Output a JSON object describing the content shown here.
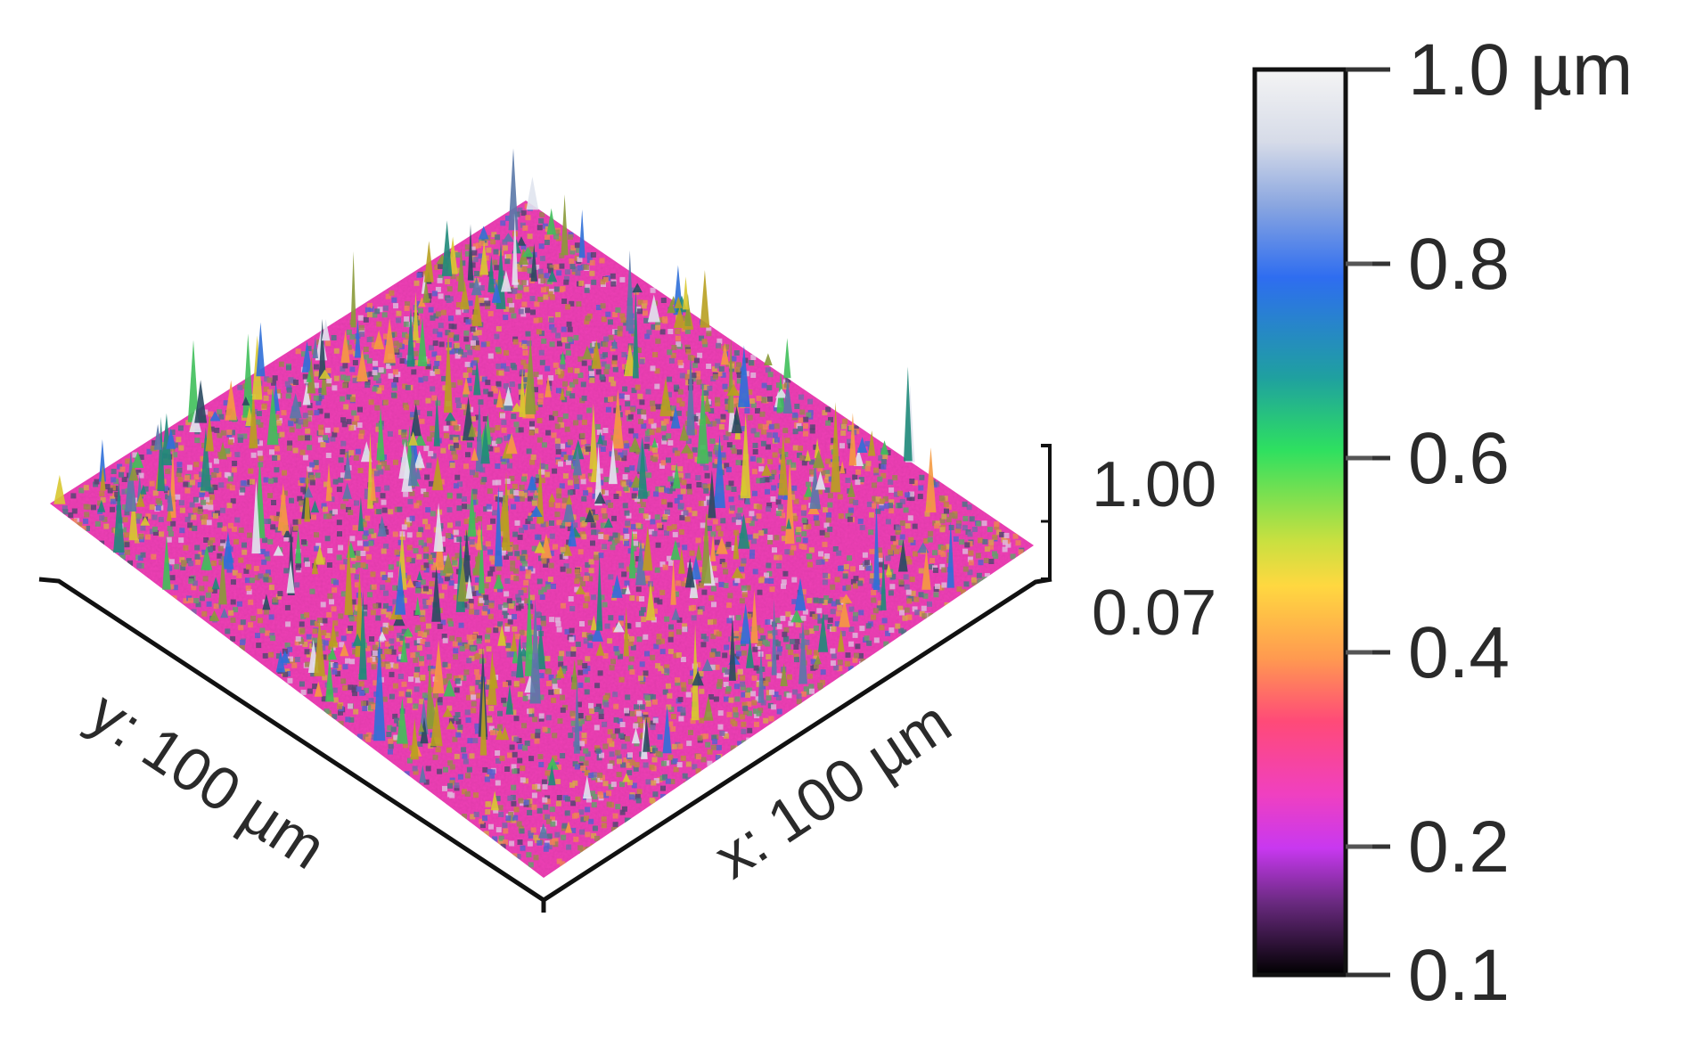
{
  "surface": {
    "y_axis_label": "y: 100 µm",
    "x_axis_label": "x: 100 µm",
    "z_scale_max_label": "1.00",
    "z_scale_min_label": "0.07",
    "stripe_count": 5,
    "base_color": "#ec3fb4"
  },
  "colorbar": {
    "tick_labels": [
      "1.0 µm",
      "0.8",
      "0.6",
      "0.4",
      "0.2",
      "0.1"
    ],
    "tick_values": [
      1.0,
      0.8,
      0.6,
      0.4,
      0.2,
      0.1
    ],
    "gradient_stops": [
      {
        "offset": 0.0,
        "color": "#f4f4f4"
      },
      {
        "offset": 0.08,
        "color": "#d6dbe8"
      },
      {
        "offset": 0.15,
        "color": "#8aa6e0"
      },
      {
        "offset": 0.23,
        "color": "#2e6df0"
      },
      {
        "offset": 0.34,
        "color": "#1fa0a0"
      },
      {
        "offset": 0.42,
        "color": "#2ee060"
      },
      {
        "offset": 0.52,
        "color": "#c8e040"
      },
      {
        "offset": 0.57,
        "color": "#ffd840"
      },
      {
        "offset": 0.65,
        "color": "#ff9a50"
      },
      {
        "offset": 0.72,
        "color": "#ff4a78"
      },
      {
        "offset": 0.8,
        "color": "#f040c0"
      },
      {
        "offset": 0.86,
        "color": "#c838f0"
      },
      {
        "offset": 0.92,
        "color": "#6a2a80"
      },
      {
        "offset": 1.0,
        "color": "#000000"
      }
    ]
  }
}
